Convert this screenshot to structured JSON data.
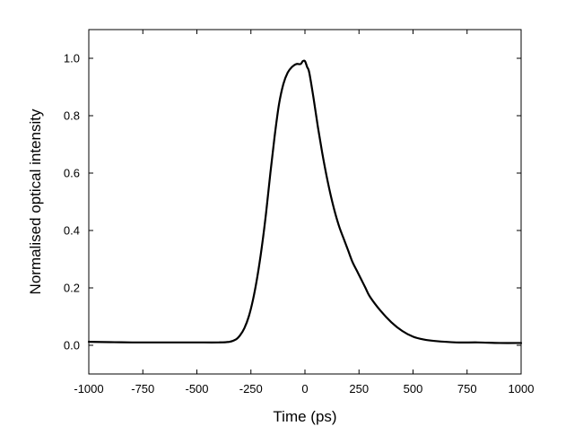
{
  "chart_data": {
    "type": "line",
    "title": "",
    "xlabel": "Time (ps)",
    "ylabel": "Normalised optical intensity",
    "xlim": [
      -1000,
      1000
    ],
    "ylim": [
      -0.1,
      1.1
    ],
    "xticks": [
      -1000,
      -750,
      -500,
      -250,
      0,
      250,
      500,
      750,
      1000
    ],
    "xtick_labels": [
      "-1000",
      "-750",
      "-500",
      "-250",
      "0",
      "250",
      "500",
      "750",
      "1000"
    ],
    "yticks": [
      0.0,
      0.2,
      0.4,
      0.6,
      0.8,
      1.0
    ],
    "ytick_labels": [
      "0.0",
      "0.2",
      "0.4",
      "0.6",
      "0.8",
      "1.0"
    ],
    "grid": false,
    "legend": "none",
    "line_color": "#000000",
    "series": [
      {
        "x": [
          -1000,
          -900,
          -800,
          -700,
          -600,
          -500,
          -400,
          -350,
          -320,
          -300,
          -280,
          -260,
          -240,
          -220,
          -200,
          -180,
          -160,
          -140,
          -120,
          -100,
          -80,
          -60,
          -40,
          -20,
          -10,
          0,
          10,
          20,
          40,
          60,
          80,
          100,
          120,
          140,
          160,
          180,
          200,
          220,
          240,
          260,
          280,
          300,
          350,
          400,
          450,
          500,
          550,
          600,
          700,
          800,
          900,
          1000
        ],
        "y": [
          0.012,
          0.011,
          0.01,
          0.01,
          0.01,
          0.01,
          0.01,
          0.012,
          0.02,
          0.035,
          0.06,
          0.1,
          0.16,
          0.24,
          0.34,
          0.46,
          0.6,
          0.73,
          0.84,
          0.91,
          0.95,
          0.97,
          0.98,
          0.98,
          0.99,
          0.99,
          0.97,
          0.95,
          0.86,
          0.76,
          0.67,
          0.59,
          0.52,
          0.46,
          0.41,
          0.37,
          0.33,
          0.29,
          0.26,
          0.23,
          0.2,
          0.17,
          0.12,
          0.08,
          0.05,
          0.03,
          0.02,
          0.015,
          0.01,
          0.01,
          0.008,
          0.008
        ]
      }
    ]
  }
}
